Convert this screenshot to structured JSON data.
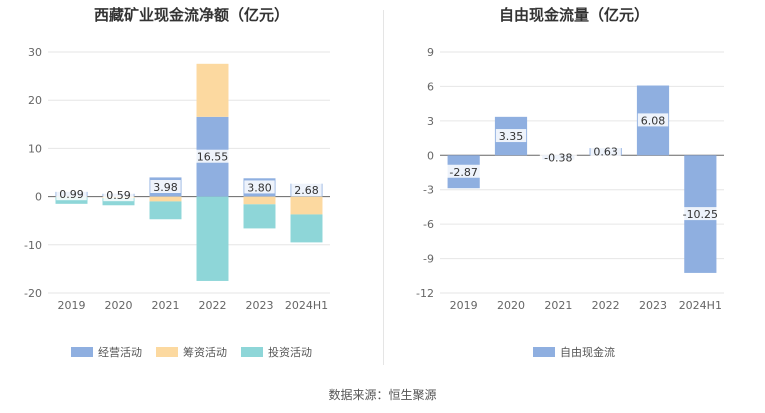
{
  "source": "数据来源：恒生聚源",
  "chart_data": [
    {
      "type": "bar",
      "stacked": true,
      "title": "西藏矿业现金流净额（亿元）",
      "categories": [
        "2019",
        "2020",
        "2021",
        "2022",
        "2023",
        "2024H1"
      ],
      "ylim": [
        -20,
        30
      ],
      "yticks": [
        -20,
        -10,
        0,
        10,
        20,
        30
      ],
      "series": [
        {
          "name": "经营活动",
          "color": "#8fafe0",
          "values": [
            0.99,
            0.59,
            3.98,
            16.55,
            3.8,
            2.68
          ]
        },
        {
          "name": "筹资活动",
          "color": "#fcd9a0",
          "values": [
            -0.1,
            -0.3,
            -1.0,
            11.0,
            -1.6,
            -3.7
          ]
        },
        {
          "name": "投资活动",
          "color": "#8ed6d8",
          "values": [
            -1.4,
            -1.5,
            -3.7,
            -17.5,
            -5.0,
            -5.8
          ]
        }
      ],
      "data_labels": [
        "0.99",
        "0.59",
        "3.98",
        "16.55",
        "3.80",
        "2.68"
      ],
      "legend": [
        "经营活动",
        "筹资活动",
        "投资活动"
      ]
    },
    {
      "type": "bar",
      "title": "自由现金流量（亿元）",
      "categories": [
        "2019",
        "2020",
        "2021",
        "2022",
        "2023",
        "2024H1"
      ],
      "ylim": [
        -12,
        9
      ],
      "yticks": [
        -12,
        -9,
        -6,
        -3,
        0,
        3,
        6,
        9
      ],
      "series": [
        {
          "name": "自由现金流",
          "color": "#8fafe0",
          "values": [
            -2.87,
            3.35,
            -0.38,
            0.63,
            6.08,
            -10.25
          ]
        }
      ],
      "data_labels": [
        "-2.87",
        "3.35",
        "-0.38",
        "0.63",
        "6.08",
        "-10.25"
      ],
      "legend": [
        "自由现金流"
      ]
    }
  ]
}
